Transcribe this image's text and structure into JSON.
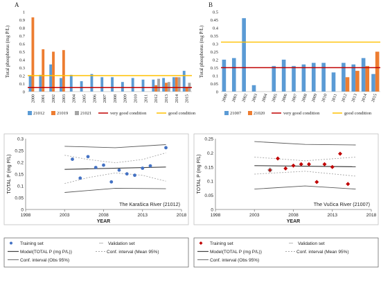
{
  "colors": {
    "series_21012": "#5b9bd5",
    "series_21019": "#ed7d31",
    "series_21021": "#a5a5a5",
    "very_good": "#c00000",
    "good": "#ffc000",
    "model_line": "#404040",
    "conf_mean": "#a6a6a6",
    "conf_obs": "#595959",
    "points_karasica": "#4472c4",
    "points_vucica": "#c00000"
  },
  "chart_data": [
    {
      "type": "bar",
      "panel_label": "A",
      "ylabel": "Total phosphorus (mg P/L)",
      "ylim": [
        0,
        1
      ],
      "yticks": [
        "0",
        "0.1",
        "0.2",
        "0.3",
        "0.4",
        "0.5",
        "0.6",
        "0.7",
        "0.8",
        "0.9",
        "1"
      ],
      "categories": [
        "2000",
        "2001",
        "2002",
        "2003",
        "2004",
        "2005",
        "2006",
        "2007",
        "2008",
        "2009",
        "2010",
        "2011",
        "2012",
        "2013",
        "2014",
        "2015"
      ],
      "series": [
        {
          "name": "21012",
          "values": [
            0.2,
            0.21,
            0.34,
            0.17,
            0.21,
            0.13,
            0.22,
            0.18,
            0.18,
            0.12,
            0.17,
            0.15,
            0.15,
            0.17,
            0.18,
            0.26
          ]
        },
        {
          "name": "21019",
          "values": [
            0.93,
            0.53,
            0.5,
            0.52,
            null,
            null,
            null,
            null,
            null,
            null,
            null,
            null,
            0.08,
            0.11,
            0.18,
            0.06
          ]
        },
        {
          "name": "21021",
          "values": [
            null,
            null,
            null,
            null,
            null,
            null,
            null,
            null,
            null,
            null,
            null,
            null,
            0.16,
            0.12,
            0.18,
            0.11
          ]
        }
      ],
      "reference_lines": [
        {
          "name": "very good condition",
          "value": 0.05
        },
        {
          "name": "good condition",
          "value": 0.2
        }
      ],
      "legend_placement": "bottom"
    },
    {
      "type": "bar",
      "panel_label": "B",
      "ylabel": "Total phosphorus (mg P/L)",
      "ylim": [
        0,
        0.5
      ],
      "yticks": [
        "0",
        "0.05",
        "0.1",
        "0.15",
        "0.2",
        "0.25",
        "0.3",
        "0.35",
        "0.4",
        "0.45",
        "0.5"
      ],
      "categories": [
        "2000",
        "2001",
        "2002",
        "2003",
        "2004",
        "2005",
        "2006",
        "2007",
        "2008",
        "2009",
        "2010",
        "2011",
        "2012",
        "2013",
        "2014",
        "2015"
      ],
      "series": [
        {
          "name": "21007",
          "values": [
            0.2,
            0.21,
            0.46,
            0.04,
            null,
            0.16,
            0.2,
            0.16,
            0.17,
            0.18,
            0.18,
            0.12,
            0.18,
            0.17,
            0.21,
            0.11
          ]
        },
        {
          "name": "21020",
          "values": [
            null,
            null,
            null,
            null,
            null,
            null,
            null,
            null,
            null,
            null,
            null,
            null,
            0.09,
            0.13,
            0.16,
            0.25
          ]
        }
      ],
      "reference_lines": [
        {
          "name": "very good condition",
          "value": 0.15
        },
        {
          "name": "good condition",
          "value": 0.31
        }
      ],
      "legend_placement": "bottom"
    },
    {
      "type": "scatter",
      "title": "The Karašica River (21012)",
      "xlabel": "YEAR",
      "ylabel": "TOTAL P (mg P/L)",
      "xlim": [
        1998,
        2018
      ],
      "ylim": [
        0,
        0.3
      ],
      "xticks": [
        1998,
        2003,
        2008,
        2013,
        2018
      ],
      "yticks": [
        "0",
        "0.05",
        "0.1",
        "0.15",
        "0.2",
        "0.25",
        "0.3"
      ],
      "training_set": [
        [
          2004,
          0.213
        ],
        [
          2005,
          0.133
        ],
        [
          2006,
          0.224
        ],
        [
          2007,
          0.178
        ],
        [
          2008,
          0.188
        ],
        [
          2009,
          0.117
        ],
        [
          2010,
          0.167
        ],
        [
          2011,
          0.151
        ],
        [
          2012,
          0.145
        ],
        [
          2013,
          0.175
        ],
        [
          2014,
          0.185
        ],
        [
          2016,
          0.262
        ]
      ],
      "validation_set": [],
      "model": [
        [
          2003,
          0.17
        ],
        [
          2016,
          0.18
        ]
      ],
      "conf_mean_upper": [
        [
          2003,
          0.23
        ],
        [
          2006,
          0.212
        ],
        [
          2009.5,
          0.198
        ],
        [
          2013,
          0.212
        ],
        [
          2016,
          0.24
        ]
      ],
      "conf_mean_lower": [
        [
          2003,
          0.11
        ],
        [
          2006,
          0.135
        ],
        [
          2009.5,
          0.155
        ],
        [
          2013,
          0.145
        ],
        [
          2016,
          0.12
        ]
      ],
      "conf_obs_upper": [
        [
          2003,
          0.268
        ],
        [
          2009.5,
          0.262
        ],
        [
          2016,
          0.275
        ]
      ],
      "conf_obs_lower": [
        [
          2003,
          0.072
        ],
        [
          2009.5,
          0.09
        ],
        [
          2016,
          0.088
        ]
      ],
      "legend_placement": "bottom",
      "legend": [
        "Training set",
        "Validation set",
        "Model(TOTAL P (mg P/L))",
        "Conf. interval (Mean 95%)",
        "Conf. interval (Obs 95%)"
      ]
    },
    {
      "type": "scatter",
      "title": "The Vučica River (21007)",
      "xlabel": "YEAR",
      "ylabel": "TOTAL P (mg P/L)",
      "xlim": [
        1998,
        2018
      ],
      "ylim": [
        0,
        0.25
      ],
      "xticks": [
        1998,
        2003,
        2008,
        2013,
        2018
      ],
      "yticks": [
        "0",
        "0.05",
        "0.1",
        "0.15",
        "0.2",
        "0.25"
      ],
      "training_set": [
        [
          2005,
          0.138
        ],
        [
          2006,
          0.18
        ],
        [
          2007,
          0.145
        ],
        [
          2008,
          0.155
        ],
        [
          2009,
          0.16
        ],
        [
          2010,
          0.16
        ],
        [
          2011,
          0.097
        ],
        [
          2012,
          0.16
        ],
        [
          2013,
          0.15
        ],
        [
          2014,
          0.197
        ],
        [
          2015,
          0.09
        ]
      ],
      "validation_set": [
        [
          2005,
          0.14
        ]
      ],
      "model": [
        [
          2003,
          0.155
        ],
        [
          2016,
          0.151
        ]
      ],
      "conf_mean_upper": [
        [
          2003,
          0.185
        ],
        [
          2009.5,
          0.172
        ],
        [
          2016,
          0.185
        ]
      ],
      "conf_mean_lower": [
        [
          2003,
          0.125
        ],
        [
          2009.5,
          0.135
        ],
        [
          2016,
          0.118
        ]
      ],
      "conf_obs_upper": [
        [
          2003,
          0.24
        ],
        [
          2009.5,
          0.23
        ],
        [
          2016,
          0.228
        ]
      ],
      "conf_obs_lower": [
        [
          2003,
          0.072
        ],
        [
          2009.5,
          0.083
        ],
        [
          2016,
          0.072
        ]
      ],
      "legend_placement": "bottom",
      "legend": [
        "Training set",
        "Validation set",
        "Model(TOTAL P (mg P/L))",
        "Conf. interval (Mean 95%)",
        "Conf. interval (Obs 95%)"
      ]
    }
  ]
}
